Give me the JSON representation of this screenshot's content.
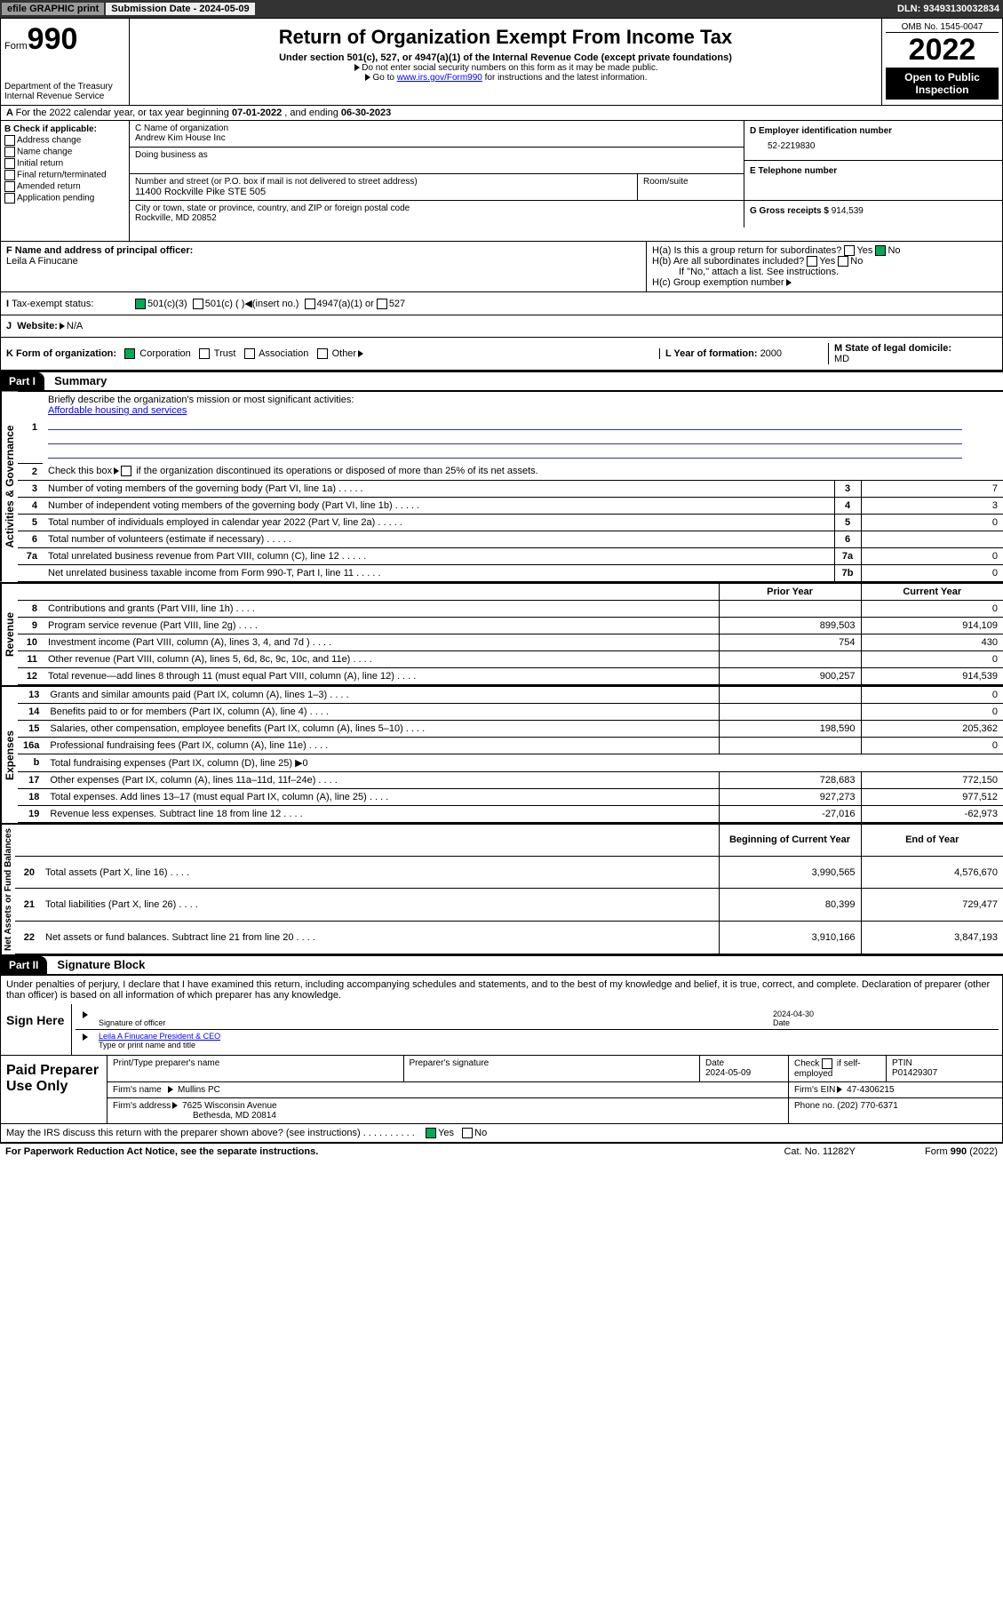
{
  "topbar": {
    "efile": "efile GRAPHIC print",
    "subdate_lbl": "Submission Date - ",
    "subdate": "2024-05-09",
    "dln_lbl": "DLN: ",
    "dln": "93493130032834"
  },
  "header": {
    "form_lbl": "Form",
    "form_num": "990",
    "dept1": "Department of the Treasury",
    "dept2": "Internal Revenue Service",
    "title": "Return of Organization Exempt From Income Tax",
    "sub": "Under section 501(c), 527, or 4947(a)(1) of the Internal Revenue Code (except private foundations)",
    "note1": "Do not enter social security numbers on this form as it may be made public.",
    "note2_a": "Go to ",
    "note2_link": "www.irs.gov/Form990",
    "note2_b": " for instructions and the latest information.",
    "omb": "OMB No. 1545-0047",
    "year": "2022",
    "open": "Open to Public Inspection"
  },
  "lineA": {
    "text_a": "For the 2022 calendar year, or tax year beginning ",
    "begin": "07-01-2022",
    "text_b": " , and ending ",
    "end": "06-30-2023"
  },
  "colB": {
    "title": "B Check if applicable:",
    "c1": "Address change",
    "c2": "Name change",
    "c3": "Initial return",
    "c4": "Final return/terminated",
    "c5": "Amended return",
    "c6": "Application pending"
  },
  "colC": {
    "name_lbl": "C Name of organization",
    "name": "Andrew Kim House Inc",
    "dba_lbl": "Doing business as",
    "addr_lbl": "Number and street (or P.O. box if mail is not delivered to street address)",
    "room_lbl": "Room/suite",
    "addr": "11400 Rockville Pike STE 505",
    "city_lbl": "City or town, state or province, country, and ZIP or foreign postal code",
    "city": "Rockville, MD  20852"
  },
  "colDE": {
    "d_lbl": "D Employer identification number",
    "ein": "52-2219830",
    "e_lbl": "E Telephone number",
    "g_lbl": "G Gross receipts $ ",
    "g_val": "914,539"
  },
  "rowF": {
    "f_lbl": "F Name and address of principal officer:",
    "officer": "Leila A Finucane",
    "ha": "H(a)  Is this a group return for subordinates?",
    "hb": "H(b)  Are all subordinates included?",
    "hb_note": "If \"No,\" attach a list. See instructions.",
    "hc": "H(c)  Group exemption number",
    "yes": "Yes",
    "no": "No"
  },
  "rowI": {
    "lbl": "Tax-exempt status:",
    "c1": "501(c)(3)",
    "c2": "501(c) (  )",
    "c2b": "(insert no.)",
    "c3": "4947(a)(1) or",
    "c4": "527"
  },
  "rowJ": {
    "lbl": "Website:",
    "val": "N/A"
  },
  "rowK": {
    "lbl": "K Form of organization:",
    "c1": "Corporation",
    "c2": "Trust",
    "c3": "Association",
    "c4": "Other",
    "l_lbl": "L Year of formation: ",
    "l_val": "2000",
    "m_lbl": "M State of legal domicile:",
    "m_val": "MD"
  },
  "part1": {
    "hdr": "Part I",
    "title": "Summary",
    "l1": "Briefly describe the organization's mission or most significant activities:",
    "l1_val": "Affordable housing and services",
    "l2": "Check this box",
    "l2b": "if the organization discontinued its operations or disposed of more than 25% of its net assets.",
    "prior_lbl": "Prior Year",
    "curr_lbl": "Current Year",
    "boy_lbl": "Beginning of Current Year",
    "eoy_lbl": "End of Year",
    "rows_gov": [
      {
        "n": "3",
        "d": "Number of voting members of the governing body (Part VI, line 1a)",
        "lbl": "3",
        "v": "7"
      },
      {
        "n": "4",
        "d": "Number of independent voting members of the governing body (Part VI, line 1b)",
        "lbl": "4",
        "v": "3"
      },
      {
        "n": "5",
        "d": "Total number of individuals employed in calendar year 2022 (Part V, line 2a)",
        "lbl": "5",
        "v": "0"
      },
      {
        "n": "6",
        "d": "Total number of volunteers (estimate if necessary)",
        "lbl": "6",
        "v": ""
      },
      {
        "n": "7a",
        "d": "Total unrelated business revenue from Part VIII, column (C), line 12",
        "lbl": "7a",
        "v": "0"
      },
      {
        "n": "",
        "d": "Net unrelated business taxable income from Form 990-T, Part I, line 11",
        "lbl": "7b",
        "v": "0"
      }
    ],
    "rows_rev": [
      {
        "n": "8",
        "d": "Contributions and grants (Part VIII, line 1h)",
        "p": "",
        "c": "0"
      },
      {
        "n": "9",
        "d": "Program service revenue (Part VIII, line 2g)",
        "p": "899,503",
        "c": "914,109"
      },
      {
        "n": "10",
        "d": "Investment income (Part VIII, column (A), lines 3, 4, and 7d )",
        "p": "754",
        "c": "430"
      },
      {
        "n": "11",
        "d": "Other revenue (Part VIII, column (A), lines 5, 6d, 8c, 9c, 10c, and 11e)",
        "p": "",
        "c": "0"
      },
      {
        "n": "12",
        "d": "Total revenue—add lines 8 through 11 (must equal Part VIII, column (A), line 12)",
        "p": "900,257",
        "c": "914,539"
      }
    ],
    "rows_exp": [
      {
        "n": "13",
        "d": "Grants and similar amounts paid (Part IX, column (A), lines 1–3)",
        "p": "",
        "c": "0"
      },
      {
        "n": "14",
        "d": "Benefits paid to or for members (Part IX, column (A), line 4)",
        "p": "",
        "c": "0"
      },
      {
        "n": "15",
        "d": "Salaries, other compensation, employee benefits (Part IX, column (A), lines 5–10)",
        "p": "198,590",
        "c": "205,362"
      },
      {
        "n": "16a",
        "d": "Professional fundraising fees (Part IX, column (A), line 11e)",
        "p": "",
        "c": "0"
      },
      {
        "n": "b",
        "d": "Total fundraising expenses (Part IX, column (D), line 25) ▶0",
        "p": "—",
        "c": "—"
      },
      {
        "n": "17",
        "d": "Other expenses (Part IX, column (A), lines 11a–11d, 11f–24e)",
        "p": "728,683",
        "c": "772,150"
      },
      {
        "n": "18",
        "d": "Total expenses. Add lines 13–17 (must equal Part IX, column (A), line 25)",
        "p": "927,273",
        "c": "977,512"
      },
      {
        "n": "19",
        "d": "Revenue less expenses. Subtract line 18 from line 12",
        "p": "-27,016",
        "c": "-62,973"
      }
    ],
    "rows_net": [
      {
        "n": "20",
        "d": "Total assets (Part X, line 16)",
        "p": "3,990,565",
        "c": "4,576,670"
      },
      {
        "n": "21",
        "d": "Total liabilities (Part X, line 26)",
        "p": "80,399",
        "c": "729,477"
      },
      {
        "n": "22",
        "d": "Net assets or fund balances. Subtract line 21 from line 20",
        "p": "3,910,166",
        "c": "3,847,193"
      }
    ],
    "vert_gov": "Activities & Governance",
    "vert_rev": "Revenue",
    "vert_exp": "Expenses",
    "vert_net": "Net Assets or Fund Balances"
  },
  "part2": {
    "hdr": "Part II",
    "title": "Signature Block",
    "decl": "Under penalties of perjury, I declare that I have examined this return, including accompanying schedules and statements, and to the best of my knowledge and belief, it is true, correct, and complete. Declaration of preparer (other than officer) is based on all information of which preparer has any knowledge.",
    "sign_here": "Sign Here",
    "sig_officer": "Signature of officer",
    "date_lbl": "Date",
    "date": "2024-04-30",
    "officer_name": "Leila A Finucane  President & CEO",
    "type_name": "Type or print name and title",
    "paid_prep": "Paid Preparer Use Only",
    "prep_name_lbl": "Print/Type preparer's name",
    "prep_sig_lbl": "Preparer's signature",
    "prep_date_lbl": "Date",
    "prep_date": "2024-05-09",
    "check_lbl": "Check",
    "self_emp": "if self-employed",
    "ptin_lbl": "PTIN",
    "ptin": "P01429307",
    "firm_name_lbl": "Firm's name",
    "firm_name": "Mullins PC",
    "firm_ein_lbl": "Firm's EIN",
    "firm_ein": "47-4306215",
    "firm_addr_lbl": "Firm's address",
    "firm_addr1": "7625 Wisconsin Avenue",
    "firm_addr2": "Bethesda, MD  20814",
    "phone_lbl": "Phone no.",
    "phone": "(202) 770-6371",
    "may_irs": "May the IRS discuss this return with the preparer shown above? (see instructions)",
    "yes": "Yes",
    "no": "No"
  },
  "footer": {
    "left": "For Paperwork Reduction Act Notice, see the separate instructions.",
    "mid": "Cat. No. 11282Y",
    "right": "Form 990 (2022)"
  }
}
